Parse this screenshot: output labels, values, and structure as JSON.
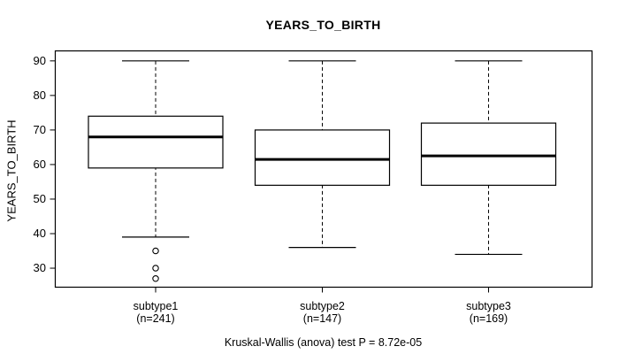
{
  "chart_data": {
    "type": "box",
    "title": "YEARS_TO_BIRTH",
    "ylabel": "YEARS_TO_BIRTH",
    "xlabel": "",
    "caption": "Kruskal-Wallis (anova) test P = 8.72e-05",
    "ylim": [
      24.5,
      92.9
    ],
    "yticks": [
      30,
      40,
      50,
      60,
      70,
      80,
      90
    ],
    "grid": false,
    "legend": "none",
    "colors": {
      "box_fill": "#ffffff",
      "line": "#000000",
      "background": "#ffffff"
    },
    "groups": [
      {
        "label": "subtype1",
        "n_label": "(n=241)",
        "n": 241,
        "whisker_low": 39,
        "q1": 59,
        "median": 68,
        "q3": 74,
        "whisker_high": 90,
        "outliers": [
          35,
          30,
          27
        ]
      },
      {
        "label": "subtype2",
        "n_label": "(n=147)",
        "n": 147,
        "whisker_low": 36,
        "q1": 54,
        "median": 61.5,
        "q3": 70,
        "whisker_high": 90,
        "outliers": []
      },
      {
        "label": "subtype3",
        "n_label": "(n=169)",
        "n": 169,
        "whisker_low": 34,
        "q1": 54,
        "median": 62.5,
        "q3": 72,
        "whisker_high": 90,
        "outliers": []
      }
    ]
  }
}
